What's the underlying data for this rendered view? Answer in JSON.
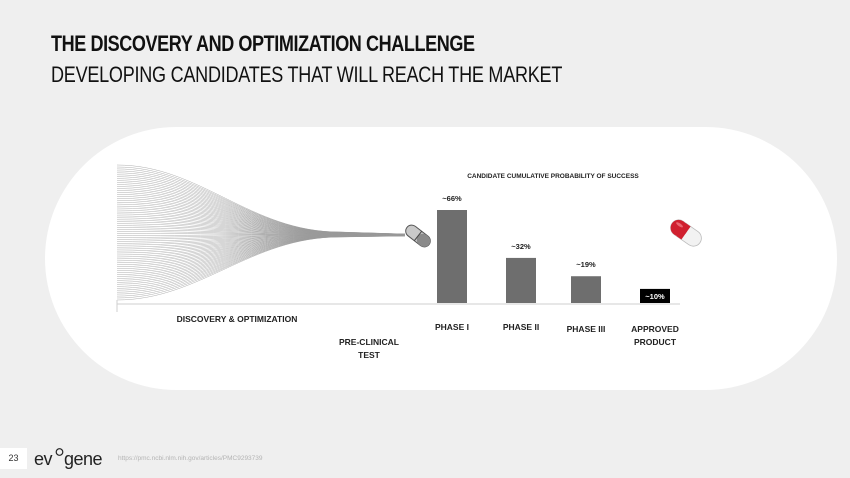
{
  "slide": {
    "title": "THE DISCOVERY AND OPTIMIZATION CHALLENGE",
    "subtitle": "DEVELOPING CANDIDATES THAT WILL REACH THE MARKET",
    "page_number": "23",
    "logo_text": "evogene",
    "source_url": "https://pmc.ncbi.nlm.nih.gov/articles/PMC9293739"
  },
  "colors": {
    "bar": "#6e6e6e",
    "approved_bar": "#000000",
    "text": "#111111",
    "funnel_lines": "#9a9a9a",
    "capsule_red": "#d0202f"
  },
  "chart_data": {
    "type": "bar",
    "title": "CANDIDATE CUMULATIVE PROBABILITY OF SUCCESS",
    "categories": [
      "DISCOVERY & OPTIMIZATION",
      "PRE-CLINICAL TEST",
      "PHASE I",
      "PHASE II",
      "PHASE III",
      "APPROVED PRODUCT"
    ],
    "series": [
      {
        "values": [
          null,
          null,
          66,
          32,
          19,
          10
        ]
      }
    ],
    "data_labels": [
      "",
      "",
      "~66%",
      "~32%",
      "~19%",
      "~10%"
    ],
    "highlight_category": "APPROVED PRODUCT",
    "grid": false,
    "legend": "none"
  }
}
